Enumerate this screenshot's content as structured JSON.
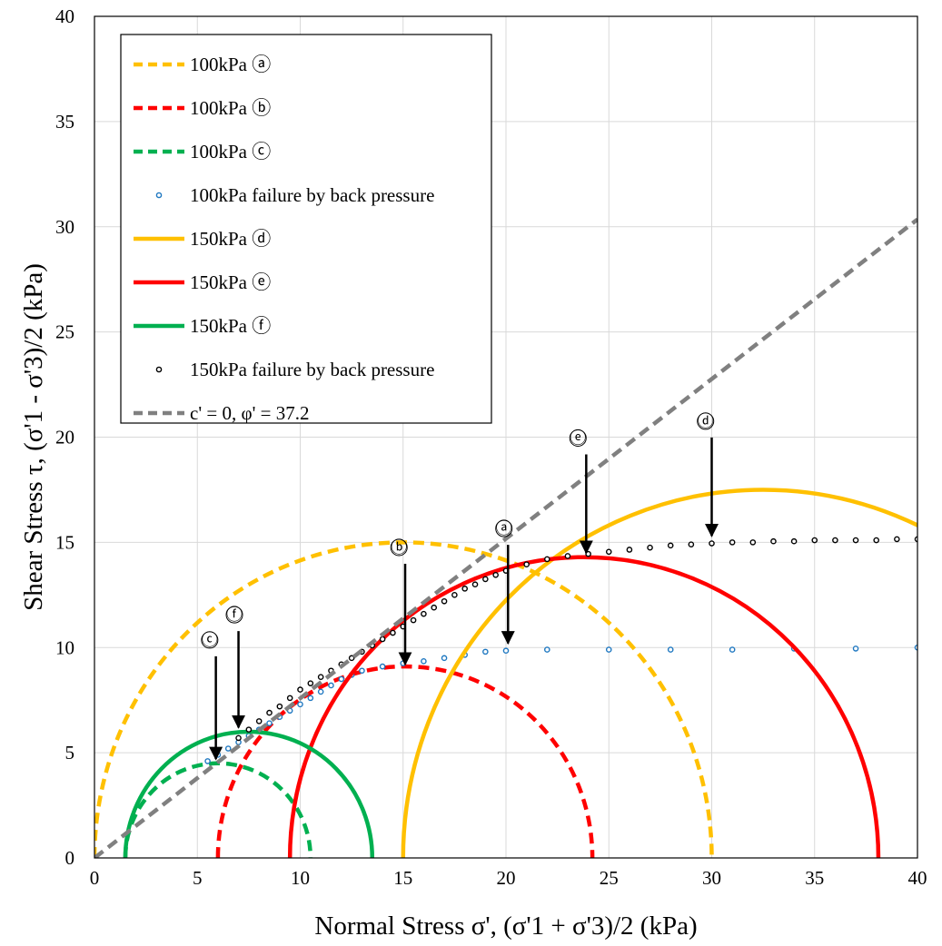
{
  "chart_data": {
    "type": "line",
    "title": "",
    "xlabel": "Normal Stress σ', (σ'1 + σ'3)/2 (kPa)",
    "ylabel": "Shear Stress τ, (σ'1 - σ'3)/2 (kPa)",
    "xlim": [
      0,
      40
    ],
    "ylim": [
      0,
      40
    ],
    "xticks": [
      0,
      5,
      10,
      15,
      20,
      25,
      30,
      35,
      40
    ],
    "yticks": [
      0,
      5,
      10,
      15,
      20,
      25,
      30,
      35,
      40
    ],
    "xtick_labels": [
      "0",
      "5",
      "10",
      "15",
      "20",
      "25",
      "30",
      "35",
      "40"
    ],
    "ytick_labels": [
      "0",
      "5",
      "10",
      "15",
      "20",
      "25",
      "30",
      "35",
      "40"
    ],
    "grid": true,
    "legend_position": "top-left",
    "series": [
      {
        "name": "100kPa ⓐ",
        "kind": "circle",
        "style": "dashed",
        "color": "#FFC000",
        "center": 15.0,
        "radius": 15.0
      },
      {
        "name": "100kPa ⓑ",
        "kind": "circle",
        "style": "dashed",
        "color": "#FF0000",
        "center": 15.1,
        "radius": 9.1
      },
      {
        "name": "100kPa ⓒ",
        "kind": "circle",
        "style": "dashed",
        "color": "#00B050",
        "center": 6.0,
        "radius": 4.5
      },
      {
        "name": "100kPa failure by back pressure",
        "kind": "points",
        "style": "markers",
        "color": "#1F78C1",
        "x": [
          5.5,
          6.0,
          6.5,
          7.0,
          7.5,
          8.0,
          8.5,
          9.0,
          9.5,
          10.0,
          10.5,
          11.0,
          11.5,
          12.0,
          12.5,
          13.0,
          14.0,
          15.0,
          16.0,
          17.0,
          18.0,
          19.0,
          20.0,
          22.0,
          25.0,
          28.0,
          31.0,
          34.0,
          37.0,
          40.0
        ],
        "y": [
          4.6,
          4.9,
          5.2,
          5.5,
          5.8,
          6.1,
          6.4,
          6.7,
          7.0,
          7.3,
          7.6,
          7.9,
          8.2,
          8.5,
          8.7,
          8.9,
          9.1,
          9.25,
          9.35,
          9.5,
          9.65,
          9.8,
          9.85,
          9.9,
          9.9,
          9.9,
          9.9,
          9.95,
          9.95,
          10.0
        ]
      },
      {
        "name": "150kPa ⓓ",
        "kind": "circle",
        "style": "solid",
        "color": "#FFC000",
        "center": 32.5,
        "radius": 17.5
      },
      {
        "name": "150kPa ⓔ",
        "kind": "circle",
        "style": "solid",
        "color": "#FF0000",
        "center": 23.8,
        "radius": 14.3
      },
      {
        "name": "150kPa ⓕ",
        "kind": "circle",
        "style": "solid",
        "color": "#00B050",
        "center": 7.5,
        "radius": 6.0
      },
      {
        "name": "150kPa failure by back pressure",
        "kind": "points",
        "style": "markers",
        "color": "#000000",
        "x": [
          7.0,
          7.5,
          8.0,
          8.5,
          9.0,
          9.5,
          10.0,
          10.5,
          11.0,
          11.5,
          12.0,
          12.5,
          13.0,
          13.5,
          14.0,
          14.5,
          15.0,
          15.5,
          16.0,
          16.5,
          17.0,
          17.5,
          18.0,
          18.5,
          19.0,
          19.5,
          20.0,
          21.0,
          22.0,
          23.0,
          24.0,
          25.0,
          26.0,
          27.0,
          28.0,
          29.0,
          30.0,
          31.0,
          32.0,
          33.0,
          34.0,
          35.0,
          36.0,
          37.0,
          38.0,
          39.0,
          40.0
        ],
        "y": [
          5.7,
          6.1,
          6.5,
          6.9,
          7.2,
          7.6,
          8.0,
          8.3,
          8.6,
          8.9,
          9.2,
          9.5,
          9.8,
          10.1,
          10.4,
          10.7,
          11.0,
          11.3,
          11.6,
          11.9,
          12.2,
          12.5,
          12.8,
          13.0,
          13.25,
          13.45,
          13.65,
          13.95,
          14.2,
          14.35,
          14.45,
          14.55,
          14.65,
          14.75,
          14.85,
          14.9,
          14.95,
          15.0,
          15.0,
          15.05,
          15.05,
          15.1,
          15.1,
          15.1,
          15.1,
          15.15,
          15.15
        ]
      },
      {
        "name": "c' = 0, φ' = 37.2",
        "kind": "line",
        "style": "dashed",
        "color": "#808080",
        "x": [
          0,
          40
        ],
        "y": [
          0,
          30.35
        ]
      }
    ],
    "annotations": [
      {
        "label": "ⓐ",
        "x": 20.1,
        "y": 10.2,
        "text_x": 19.9,
        "text_y": 15.4
      },
      {
        "label": "ⓑ",
        "x": 15.1,
        "y": 9.2,
        "text_x": 14.8,
        "text_y": 14.5
      },
      {
        "label": "ⓒ",
        "x": 5.9,
        "y": 4.7,
        "text_x": 5.6,
        "text_y": 10.1
      },
      {
        "label": "ⓓ",
        "x": 30.0,
        "y": 15.3,
        "text_x": 29.7,
        "text_y": 20.5
      },
      {
        "label": "ⓔ",
        "x": 23.9,
        "y": 14.5,
        "text_x": 23.5,
        "text_y": 19.7
      },
      {
        "label": "ⓕ",
        "x": 7.0,
        "y": 6.2,
        "text_x": 6.8,
        "text_y": 11.3
      }
    ]
  }
}
